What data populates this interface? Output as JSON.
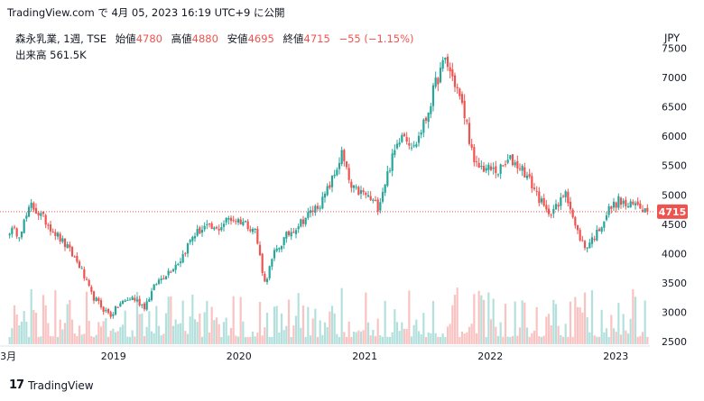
{
  "header": {
    "source": "TradingView.com で 4月 05, 2023 16:19 UTC+9 に公開"
  },
  "legend": {
    "symbol": "森永乳業, 1週, TSE",
    "open_label": "始値",
    "open": "4780",
    "high_label": "高値",
    "high": "4880",
    "low_label": "安値",
    "low": "4695",
    "close_label": "終値",
    "close": "4715",
    "change": "−55 (−1.15%)",
    "volume_label": "出来高",
    "volume": "561.5K"
  },
  "currency": "JPY",
  "last_price_tag": "4715",
  "footer": {
    "brand": "TradingView",
    "logo": "17"
  },
  "colors": {
    "up": "#26a69a",
    "down": "#ef5350",
    "price_line": "#ef5350"
  },
  "chart_data": {
    "type": "candlestick",
    "interval": "1 week",
    "y_axis_ticks": [
      "7500",
      "7000",
      "6500",
      "6000",
      "5500",
      "5000",
      "4500",
      "4000",
      "3500",
      "3000",
      "2500"
    ],
    "ylim": [
      2300,
      7700
    ],
    "x_axis_labels": [
      "3月",
      "2019",
      "2020",
      "2021",
      "2022",
      "2023"
    ],
    "last_close": 4715,
    "close_anchors": [
      [
        "2018-03-05",
        4400
      ],
      [
        "2018-04-02",
        4350
      ],
      [
        "2018-05-07",
        4820
      ],
      [
        "2018-06-11",
        4600
      ],
      [
        "2018-07-16",
        4350
      ],
      [
        "2018-08-20",
        4100
      ],
      [
        "2018-09-24",
        3800
      ],
      [
        "2018-10-29",
        3300
      ],
      [
        "2018-12-03",
        3050
      ],
      [
        "2018-12-24",
        2950
      ],
      [
        "2019-01-21",
        3150
      ],
      [
        "2019-02-25",
        3250
      ],
      [
        "2019-04-01",
        3100
      ],
      [
        "2019-05-06",
        3500
      ],
      [
        "2019-06-10",
        3700
      ],
      [
        "2019-07-15",
        3900
      ],
      [
        "2019-08-19",
        4300
      ],
      [
        "2019-09-23",
        4450
      ],
      [
        "2019-10-28",
        4400
      ],
      [
        "2019-12-02",
        4600
      ],
      [
        "2020-01-13",
        4550
      ],
      [
        "2020-02-17",
        4400
      ],
      [
        "2020-03-16",
        3500
      ],
      [
        "2020-04-13",
        4000
      ],
      [
        "2020-05-18",
        4300
      ],
      [
        "2020-06-22",
        4500
      ],
      [
        "2020-07-27",
        4700
      ],
      [
        "2020-08-31",
        4900
      ],
      [
        "2020-10-05",
        5350
      ],
      [
        "2020-10-26",
        5700
      ],
      [
        "2020-11-23",
        5100
      ],
      [
        "2021-01-04",
        5000
      ],
      [
        "2021-02-08",
        4800
      ],
      [
        "2021-03-15",
        5500
      ],
      [
        "2021-04-19",
        6100
      ],
      [
        "2021-05-24",
        5800
      ],
      [
        "2021-06-28",
        6300
      ],
      [
        "2021-07-26",
        6900
      ],
      [
        "2021-08-23",
        7300
      ],
      [
        "2021-09-27",
        6800
      ],
      [
        "2021-10-25",
        6200
      ],
      [
        "2021-11-15",
        5500
      ],
      [
        "2021-12-20",
        5450
      ],
      [
        "2022-01-24",
        5400
      ],
      [
        "2022-02-28",
        5600
      ],
      [
        "2022-04-04",
        5450
      ],
      [
        "2022-05-09",
        5100
      ],
      [
        "2022-06-13",
        4700
      ],
      [
        "2022-07-18",
        4800
      ],
      [
        "2022-08-08",
        5100
      ],
      [
        "2022-09-05",
        4450
      ],
      [
        "2022-10-03",
        4100
      ],
      [
        "2022-11-07",
        4350
      ],
      [
        "2022-12-12",
        4750
      ],
      [
        "2023-01-09",
        4900
      ],
      [
        "2023-02-06",
        4800
      ],
      [
        "2023-03-06",
        4850
      ],
      [
        "2023-04-03",
        4715
      ]
    ]
  }
}
